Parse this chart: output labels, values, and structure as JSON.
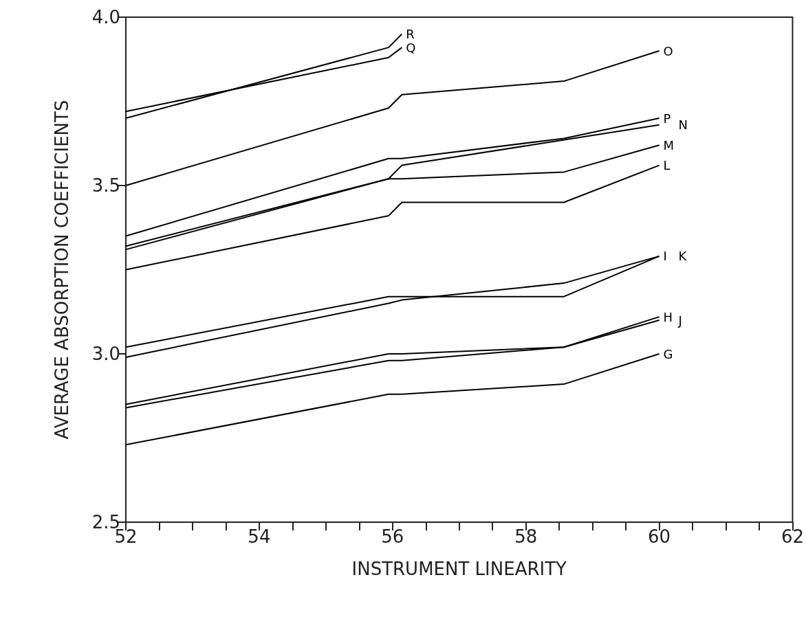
{
  "chart_data": {
    "type": "line",
    "xlabel": "INSTRUMENT LINEARITY",
    "ylabel": "AVERAGE ABSORPTION COEFFICIENTS",
    "xlim": [
      52,
      62
    ],
    "ylim": [
      2.5,
      4.0
    ],
    "xticks": [
      52,
      {
        "value": 52.5,
        "label": null
      },
      {
        "value": 53,
        "label": null
      },
      {
        "value": 53.5,
        "label": null
      },
      54,
      {
        "value": 54.5,
        "label": null
      },
      {
        "value": 55,
        "label": null
      },
      {
        "value": 55.5,
        "label": null
      },
      56,
      {
        "value": 56.5,
        "label": null
      },
      {
        "value": 57,
        "label": null
      },
      {
        "value": 57.5,
        "label": null
      },
      58,
      {
        "value": 58.5,
        "label": null
      },
      {
        "value": 59,
        "label": null
      },
      {
        "value": 59.5,
        "label": null
      },
      60,
      {
        "value": 60.5,
        "label": null
      },
      {
        "value": 61,
        "label": null
      },
      {
        "value": 61.5,
        "label": null
      },
      62
    ],
    "yticks": [
      2.5,
      {
        "value": 3,
        "label": "3.0"
      },
      3.5,
      {
        "value": 4,
        "label": "4.0"
      }
    ],
    "grid": false,
    "legend": false,
    "series": [
      {
        "name": "R",
        "color": "#000000",
        "x": [
          52,
          55.94,
          56.14
        ],
        "values": [
          3.7,
          3.91,
          3.95
        ]
      },
      {
        "name": "Q",
        "color": "#000000",
        "x": [
          52,
          55.94,
          56.14
        ],
        "values": [
          3.72,
          3.88,
          3.91
        ]
      },
      {
        "name": "O",
        "color": "#000000",
        "x": [
          52,
          55.94,
          56.14,
          58.57,
          60
        ],
        "values": [
          3.5,
          3.73,
          3.77,
          3.81,
          3.9
        ]
      },
      {
        "name": "P",
        "color": "#000000",
        "x": [
          52,
          55.94,
          56.14,
          58.57,
          60
        ],
        "values": [
          3.35,
          3.58,
          3.58,
          3.64,
          3.7
        ]
      },
      {
        "name": "N",
        "color": "#000000",
        "x": [
          52,
          55.94,
          56.14,
          60
        ],
        "values": [
          3.32,
          3.52,
          3.56,
          3.68
        ]
      },
      {
        "name": "M",
        "color": "#000000",
        "x": [
          52,
          55.94,
          56.14,
          58.57,
          60
        ],
        "values": [
          3.31,
          3.52,
          3.52,
          3.54,
          3.62
        ]
      },
      {
        "name": "L",
        "color": "#000000",
        "x": [
          52,
          55.94,
          56.14,
          58.57,
          60
        ],
        "values": [
          3.25,
          3.41,
          3.45,
          3.45,
          3.56
        ]
      },
      {
        "name": "I",
        "color": "#000000",
        "x": [
          52,
          55.94,
          56.14,
          58.57,
          60
        ],
        "values": [
          3.02,
          3.17,
          3.17,
          3.17,
          3.29
        ]
      },
      {
        "name": "K",
        "color": "#000000",
        "x": [
          52,
          55.94,
          56.14,
          58.57,
          60
        ],
        "values": [
          2.99,
          3.15,
          3.16,
          3.21,
          3.29
        ]
      },
      {
        "name": "H",
        "color": "#000000",
        "x": [
          52,
          55.94,
          56.14,
          58.57,
          60
        ],
        "values": [
          2.85,
          3.0,
          3.0,
          3.02,
          3.11
        ]
      },
      {
        "name": "J",
        "color": "#000000",
        "x": [
          52,
          55.94,
          56.14,
          58.57,
          60
        ],
        "values": [
          2.84,
          2.98,
          2.98,
          3.02,
          3.1
        ]
      },
      {
        "name": "G",
        "color": "#000000",
        "x": [
          52,
          55.94,
          56.14,
          58.57,
          60
        ],
        "values": [
          2.73,
          2.88,
          2.88,
          2.91,
          3.0
        ]
      }
    ]
  }
}
